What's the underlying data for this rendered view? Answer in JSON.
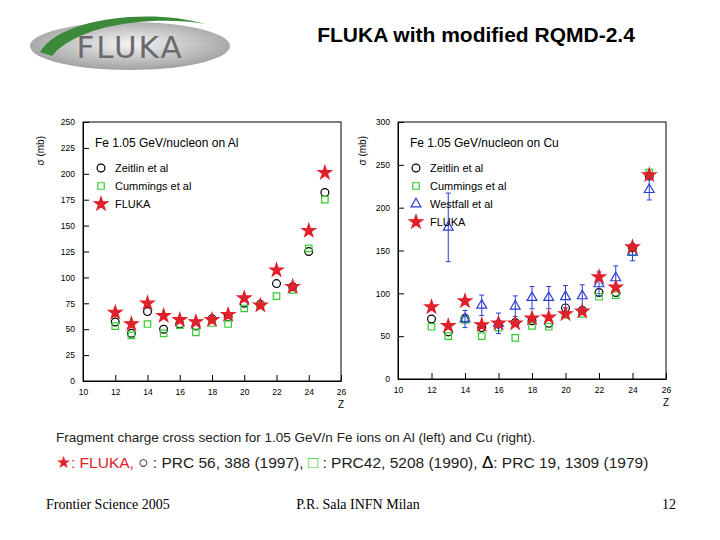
{
  "slide": {
    "logo": "FLUKA",
    "title": "FLUKA with modified RQMD-2.4",
    "caption": "Fragment charge cross section for 1.05 GeV/n Fe ions on Al (left) and Cu (right).",
    "references": [
      {
        "symbol": "★",
        "text": ": FLUKA,"
      },
      {
        "symbol": "○",
        "text": " : PRC 56, 388 (1997),"
      },
      {
        "symbol": "□",
        "text": " : PRC42, 5208 (1990),"
      },
      {
        "symbol": "Δ",
        "text": ": PRC 19, 1309 (1979)"
      }
    ],
    "footer": {
      "left": "Frontier Science 2005",
      "center": "P.R. Sala INFN Milan",
      "page": 12
    }
  },
  "chart_data": [
    {
      "type": "scatter",
      "title": "Fe 1.05 GeV/nucleon on Al",
      "x_label": "Z",
      "y_label": "σ (mb)",
      "x": [
        12,
        13,
        14,
        15,
        16,
        17,
        18,
        19,
        20,
        21,
        22,
        23,
        24,
        25
      ],
      "xlim": [
        10,
        26
      ],
      "xticks": [
        10,
        12,
        14,
        16,
        18,
        20,
        22,
        24,
        26
      ],
      "ylim": [
        0,
        250
      ],
      "yticks": [
        0,
        25,
        50,
        75,
        100,
        125,
        150,
        175,
        200,
        225,
        250
      ],
      "legend": "upper left",
      "series": [
        {
          "name": "Zeitlin et al",
          "color": "#000000",
          "marker": "circle",
          "values": [
            57,
            46,
            67,
            50,
            55,
            53,
            60,
            62,
            75,
            74,
            94,
            91,
            125,
            182
          ]
        },
        {
          "name": "Cummings et al",
          "color": "#33cc33",
          "marker": "square",
          "values": [
            53,
            44,
            55,
            46,
            54,
            47,
            56,
            55,
            70,
            73,
            82,
            88,
            128,
            175
          ]
        },
        {
          "name": "FLUKA",
          "color": "#e0202a",
          "marker": "star",
          "values": [
            66,
            55,
            75,
            63,
            59,
            57,
            59,
            64,
            80,
            73,
            107,
            91,
            145,
            201
          ]
        }
      ]
    },
    {
      "type": "scatter",
      "title": "Fe 1.05 GeV/nucleon  on Cu",
      "x_label": "Z",
      "y_label": "σ (mb)",
      "x": [
        12,
        13,
        14,
        15,
        16,
        17,
        18,
        19,
        20,
        21,
        22,
        23,
        24,
        25
      ],
      "xlim": [
        10,
        26
      ],
      "xticks": [
        10,
        12,
        14,
        16,
        18,
        20,
        22,
        24,
        26
      ],
      "ylim": [
        0,
        300
      ],
      "yticks": [
        0,
        50,
        100,
        150,
        200,
        250,
        300
      ],
      "legend": "upper left",
      "series": [
        {
          "name": "Zeitlin et al",
          "color": "#000000",
          "marker": "circle",
          "values": [
            70,
            55,
            71,
            60,
            64,
            66,
            68,
            65,
            83,
            80,
            101,
            101,
            153,
            237
          ]
        },
        {
          "name": "Cummings et al",
          "color": "#33cc33",
          "marker": "square",
          "values": [
            61,
            50,
            69,
            50,
            60,
            48,
            62,
            61,
            75,
            76,
            96,
            98,
            148,
            241
          ]
        },
        {
          "name": "Westfall et al",
          "color": "#2a3fd0",
          "marker": "triangle",
          "values": [
            null,
            177,
            70,
            86,
            65,
            85,
            95,
            95,
            96,
            97,
            111,
            118,
            148,
            221
          ],
          "errors": [
            null,
            40,
            10,
            12,
            12,
            12,
            13,
            13,
            13,
            13,
            14,
            14,
            10,
            12
          ]
        },
        {
          "name": "FLUKA",
          "color": "#e0202a",
          "marker": "star",
          "values": [
            84,
            62,
            91,
            63,
            65,
            65,
            71,
            72,
            76,
            79,
            119,
            107,
            154,
            238
          ]
        }
      ]
    }
  ]
}
